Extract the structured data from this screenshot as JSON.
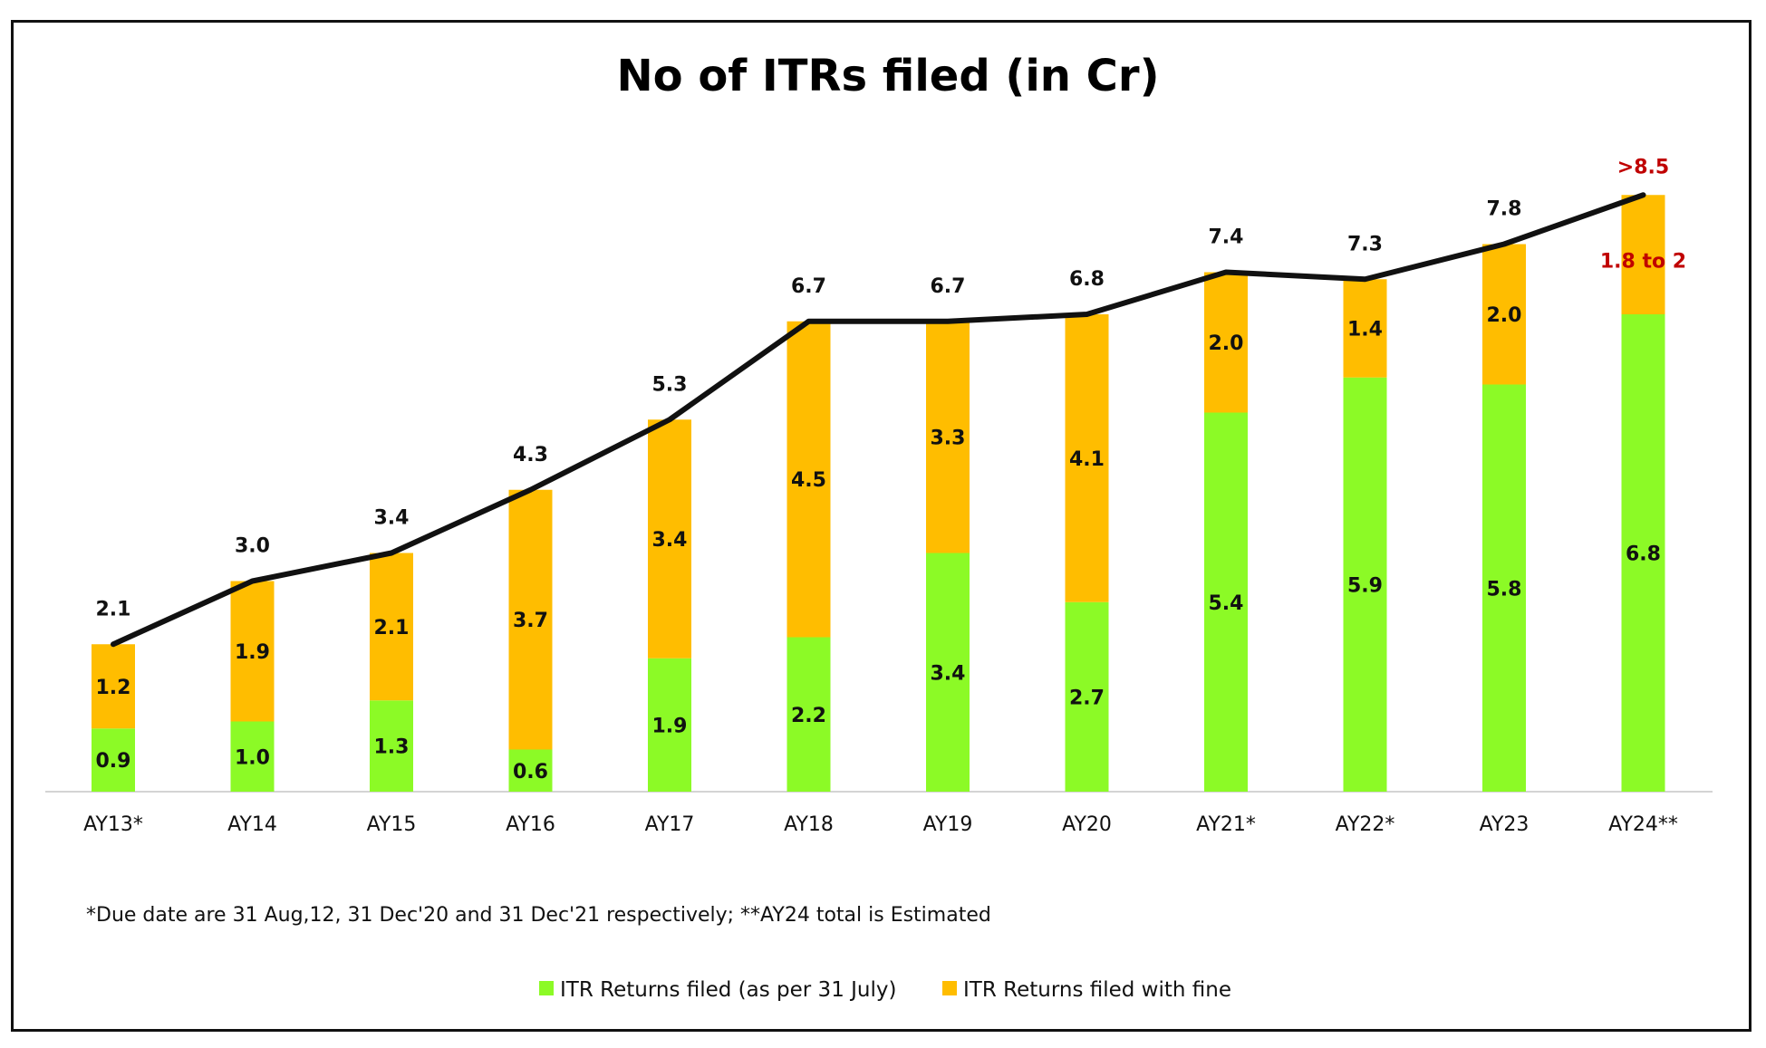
{
  "chart_data": {
    "type": "bar",
    "stacked": true,
    "title": "No of ITRs filed (in Cr)",
    "categories": [
      "AY13*",
      "AY14",
      "AY15",
      "AY16",
      "AY17",
      "AY18",
      "AY19",
      "AY20",
      "AY21*",
      "AY22*",
      "AY23",
      "AY24**"
    ],
    "series": [
      {
        "name": "ITR Returns filed (as per 31 July)",
        "color": "#8cfa26",
        "values": [
          0.9,
          1.0,
          1.3,
          0.6,
          1.9,
          2.2,
          3.4,
          2.7,
          5.4,
          5.9,
          5.8,
          6.8
        ],
        "labels": [
          "0.9",
          "1.0",
          "1.3",
          "0.6",
          "1.9",
          "2.2",
          "3.4",
          "2.7",
          "5.4",
          "5.9",
          "5.8",
          "6.8"
        ]
      },
      {
        "name": "ITR Returns filed  with fine",
        "color": "#ffbd00",
        "values": [
          1.2,
          1.9,
          2.1,
          3.7,
          3.4,
          4.5,
          3.3,
          4.1,
          2.0,
          1.4,
          2.0,
          1.9
        ],
        "labels": [
          "1.2",
          "1.9",
          "2.1",
          "3.7",
          "3.4",
          "4.5",
          "3.3",
          "4.1",
          "2.0",
          "1.4",
          "2.0",
          "1.8 to 2"
        ]
      }
    ],
    "total_line": {
      "color": "#111111",
      "values": [
        2.1,
        3.0,
        3.4,
        4.3,
        5.3,
        6.7,
        6.7,
        6.8,
        7.4,
        7.3,
        7.8,
        8.5
      ],
      "labels": [
        "2.1",
        "3.0",
        "3.4",
        "4.3",
        "5.3",
        "6.7",
        "6.7",
        "6.8",
        "7.4",
        "7.3",
        "7.8",
        ">8.5"
      ]
    },
    "highlight_color": "#c00000",
    "ylim": [
      0,
      9
    ],
    "grid": false,
    "legend_position": "bottom",
    "footnote": "*Due date are 31 Aug,12, 31 Dec'20 and 31 Dec'21 respectively; **AY24 total is Estimated"
  }
}
